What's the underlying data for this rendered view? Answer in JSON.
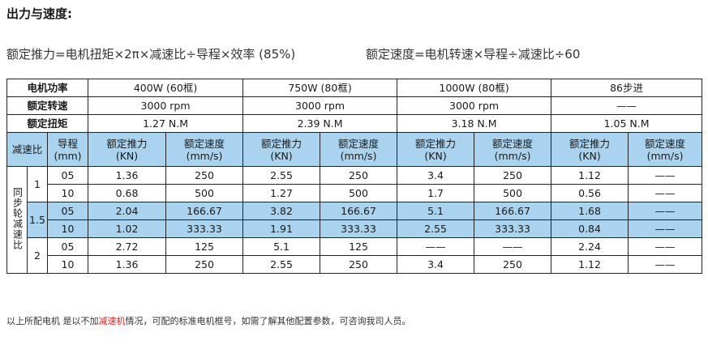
{
  "title": "出力与速度:",
  "formula_force": "额定推力=电机扭矩×2π×减速比÷导程×效率 (85%)",
  "formula_speed": "额定速度=电机转速×导程÷减速比÷60",
  "table": {
    "motor_power_label": "电机功率",
    "rated_speed_label": "额定转速",
    "rated_torque_label": "额定扭矩",
    "motors": [
      {
        "power": "400W (60框)",
        "rpm": "3000 rpm",
        "torque": "1.27 N.M"
      },
      {
        "power": "750W (80框)",
        "rpm": "3000 rpm",
        "torque": "2.39 N.M"
      },
      {
        "power": "1000W (80框)",
        "rpm": "3000 rpm",
        "torque": "3.18 N.M"
      },
      {
        "power": "86步进",
        "rpm": "——",
        "torque": "1.05 N.M"
      }
    ],
    "ratio_header": "减速比",
    "lead_header_1": "导程",
    "lead_header_2": "(mm)",
    "force_header_1": "额定推力",
    "force_header_2": "(KN)",
    "speed_header_1": "额定速度",
    "speed_header_2": "(mm/s)",
    "side_label": "同步轮减速比",
    "ratios": [
      "1",
      "1.5",
      "2"
    ],
    "rows": [
      {
        "lead": "05",
        "v": [
          "1.36",
          "250",
          "2.55",
          "250",
          "3.4",
          "250",
          "1.12",
          "——"
        ]
      },
      {
        "lead": "10",
        "v": [
          "0.68",
          "500",
          "1.27",
          "500",
          "1.7",
          "500",
          "0.56",
          "——"
        ]
      },
      {
        "lead": "05",
        "v": [
          "2.04",
          "166.67",
          "3.82",
          "166.67",
          "5.1",
          "166.67",
          "1.68",
          "——"
        ]
      },
      {
        "lead": "10",
        "v": [
          "1.02",
          "333.33",
          "1.91",
          "333.33",
          "2.55",
          "333.33",
          "0.84",
          "——"
        ]
      },
      {
        "lead": "05",
        "v": [
          "2.72",
          "125",
          "5.1",
          "125",
          "——",
          "——",
          "2.24",
          "——"
        ]
      },
      {
        "lead": "10",
        "v": [
          "1.36",
          "250",
          "2.55",
          "250",
          "3.4",
          "250",
          "1.12",
          "——"
        ]
      }
    ]
  },
  "note_before": "以上所配电机 是以不加",
  "note_highlight": "减速机",
  "note_after": "情况，可配的标准电机框号，如需了解其他配置参数，可咨询我司人员。",
  "colors": {
    "highlight_row": "#a9d3ef",
    "note_highlight": "#e02020"
  }
}
